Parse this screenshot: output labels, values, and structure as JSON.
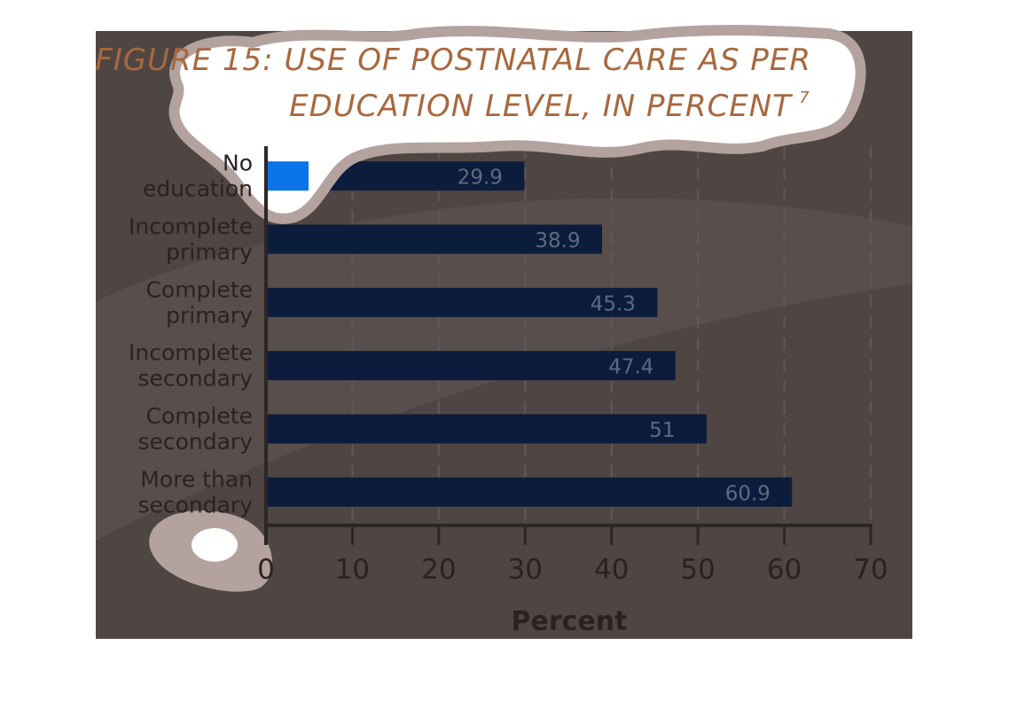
{
  "chart_data": {
    "type": "bar",
    "orientation": "horizontal",
    "title_line1": "FIGURE 15: USE OF POSTNATAL CARE AS PER",
    "title_line2": "EDUCATION LEVEL, IN PERCENT",
    "title_superscript": "7",
    "categories": [
      [
        "No",
        "education"
      ],
      [
        "Incomplete",
        "primary"
      ],
      [
        "Complete",
        "primary"
      ],
      [
        "Incomplete",
        "secondary"
      ],
      [
        "Complete",
        "secondary"
      ],
      [
        "More than",
        "secondary"
      ]
    ],
    "values": [
      29.9,
      38.9,
      45.3,
      47.4,
      51,
      60.9
    ],
    "value_labels": [
      "29.9",
      "38.9",
      "45.3",
      "47.4",
      "51",
      "60.9"
    ],
    "xlabel": "Percent",
    "xlim": [
      0,
      70
    ],
    "xticks": [
      0,
      10,
      20,
      30,
      40,
      50,
      60,
      70
    ],
    "grid": true,
    "colors": {
      "background": "#4f4643",
      "bar": "#0c1c3c",
      "highlight_bar": "#0a74e8",
      "title": "#a8683f",
      "cloud_fill": "#ffffff",
      "cloud_edge": "#b3a29e"
    }
  }
}
